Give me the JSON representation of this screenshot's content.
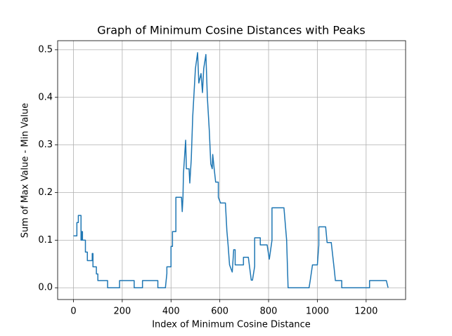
{
  "chart_data": {
    "type": "line",
    "title": "Graph of Minimum Cosine Distances with Peaks",
    "x_label": "Index of Minimum Cosine Distance",
    "y_label": "Sum of Max Value - Min Value",
    "color": "#1f77b4",
    "grid": true,
    "xlim": [
      -64.85,
      1361.85
    ],
    "ylim": [
      -0.0247,
      0.519
    ],
    "xticks": [
      0,
      200,
      400,
      600,
      800,
      1000,
      1200
    ],
    "yticks": [
      {
        "value": 0,
        "label": "0.0"
      },
      0.1,
      0.2,
      0.3,
      0.4,
      0.5
    ],
    "x": [
      0,
      14,
      14,
      20,
      20,
      31,
      31,
      34,
      34,
      37,
      37,
      49,
      49,
      57,
      57,
      77,
      77,
      80,
      80,
      94,
      94,
      100,
      100,
      140,
      140,
      189,
      189,
      249,
      249,
      283,
      283,
      346,
      346,
      377,
      383,
      383,
      400,
      400,
      406,
      406,
      420,
      420,
      443,
      446,
      449,
      451,
      460,
      463,
      474,
      477,
      483,
      489,
      500,
      509,
      514,
      523,
      529,
      534,
      543,
      549,
      557,
      563,
      569,
      571,
      577,
      583,
      594,
      594,
      603,
      623,
      629,
      634,
      640,
      651,
      657,
      663,
      663,
      697,
      697,
      717,
      729,
      734,
      743,
      743,
      766,
      766,
      794,
      803,
      814,
      814,
      863,
      874,
      880,
      966,
      971,
      980,
      1000,
      1006,
      1006,
      1034,
      1040,
      1057,
      1069,
      1074,
      1100,
      1100,
      1214,
      1214,
      1283,
      1290
    ],
    "values": [
      0.109,
      0.109,
      0.137,
      0.137,
      0.152,
      0.152,
      0.1,
      0.1,
      0.118,
      0.118,
      0.1,
      0.1,
      0.075,
      0.075,
      0.057,
      0.057,
      0.072,
      0.072,
      0.044,
      0.044,
      0.029,
      0.029,
      0.015,
      0.015,
      0,
      0,
      0.015,
      0.015,
      0,
      0,
      0.015,
      0.015,
      0,
      0,
      0.03,
      0.044,
      0.044,
      0.087,
      0.087,
      0.118,
      0.118,
      0.19,
      0.19,
      0.16,
      0.19,
      0.24,
      0.31,
      0.25,
      0.25,
      0.22,
      0.27,
      0.36,
      0.46,
      0.494,
      0.43,
      0.45,
      0.41,
      0.46,
      0.49,
      0.4,
      0.33,
      0.26,
      0.25,
      0.28,
      0.25,
      0.222,
      0.222,
      0.19,
      0.178,
      0.178,
      0.12,
      0.09,
      0.048,
      0.033,
      0.08,
      0.08,
      0.048,
      0.048,
      0.064,
      0.064,
      0.016,
      0.016,
      0.045,
      0.105,
      0.105,
      0.09,
      0.09,
      0.06,
      0.1,
      0.168,
      0.168,
      0.1,
      0,
      0,
      0.016,
      0.048,
      0.048,
      0.09,
      0.128,
      0.128,
      0.095,
      0.095,
      0.04,
      0.015,
      0.015,
      0,
      0,
      0.015,
      0.015,
      0
    ]
  }
}
